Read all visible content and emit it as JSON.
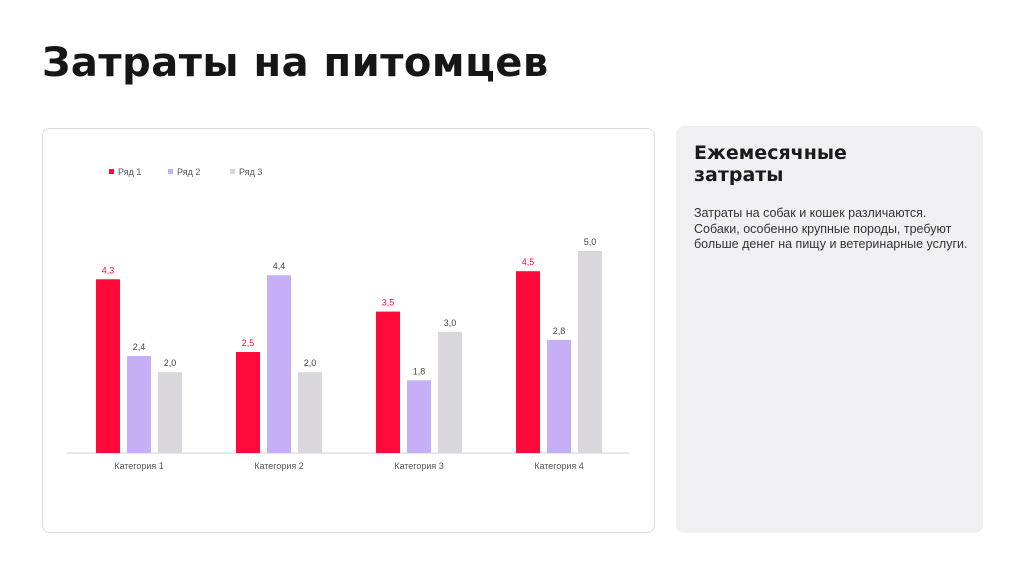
{
  "slide": {
    "title": "Затраты на питомцев"
  },
  "sidebar": {
    "title": "Ежемесячные затраты",
    "text": "Затраты на собак и кошек различаются. Собаки, особенно крупные породы, требуют больше денег на пищу и ветеринарные услуги."
  },
  "chart_data": {
    "type": "bar",
    "categories": [
      "Категория 1",
      "Категория 2",
      "Категория 3",
      "Категория 4"
    ],
    "series": [
      {
        "name": "Ряд 1",
        "values": [
          4.3,
          2.5,
          3.5,
          4.5
        ],
        "color": "#ff0a3b",
        "label_color": "#ff0a3b"
      },
      {
        "name": "Ряд 2",
        "values": [
          2.4,
          4.4,
          1.8,
          2.8
        ],
        "color": "#c6aff7",
        "label_color": "#444444"
      },
      {
        "name": "Ряд 3",
        "values": [
          2.0,
          2.0,
          3.0,
          5.0
        ],
        "color": "#d9d7dc",
        "label_color": "#444444"
      }
    ],
    "data_labels": [
      [
        "4,3",
        "2,5",
        "3,5",
        "4,5"
      ],
      [
        "2,4",
        "4,4",
        "1,8",
        "2,8"
      ],
      [
        "2,0",
        "2,0",
        "3,0",
        "5,0"
      ]
    ],
    "ylim": [
      0,
      5
    ],
    "legend_position": "top-left",
    "grid": false
  }
}
